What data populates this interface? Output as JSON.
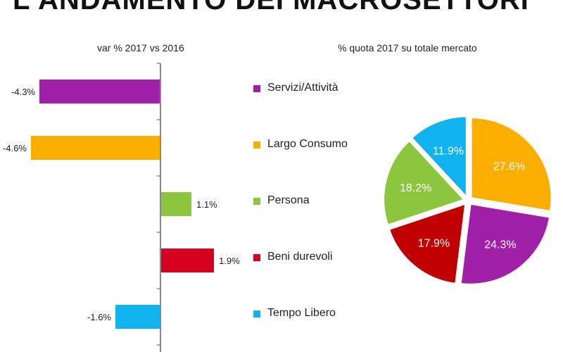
{
  "title": "L'ANDAMENTO DEI MACROSETTORI",
  "chart_data": [
    {
      "type": "bar",
      "orientation": "horizontal",
      "title": "var % 2017 vs 2016",
      "categories": [
        "Servizi/Attività",
        "Largo Consumo",
        "Persona",
        "Beni durevoli",
        "Tempo Libero"
      ],
      "values": [
        -4.3,
        -4.6,
        1.1,
        1.9,
        -1.6
      ],
      "labels": [
        "-4.3%",
        "-4.6%",
        "1.1%",
        "1.9%",
        "-1.6%"
      ],
      "colors": [
        "#A020A8",
        "#F9AE00",
        "#8CC63F",
        "#D7001F",
        "#10B3EE"
      ]
    },
    {
      "type": "pie",
      "title": "% quota 2017 su totale mercato",
      "categories": [
        "Largo Consumo",
        "Servizi/Attività",
        "Beni durevoli",
        "Persona",
        "Tempo Libero"
      ],
      "values": [
        27.6,
        24.3,
        17.9,
        18.2,
        11.9
      ],
      "labels": [
        "27.6%",
        "24.3%",
        "17.9%",
        "18.2%",
        "11.9%"
      ],
      "colors": [
        "#F9AE00",
        "#A020A8",
        "#C00000",
        "#8CC63F",
        "#10B3EE"
      ]
    }
  ],
  "legend": [
    {
      "label": "Servizi/Attività",
      "color": "#A020A8"
    },
    {
      "label": "Largo Consumo",
      "color": "#F9AE00"
    },
    {
      "label": "Persona",
      "color": "#8CC63F"
    },
    {
      "label": "Beni durevoli",
      "color": "#D7001F"
    },
    {
      "label": "Tempo Libero",
      "color": "#10B3EE"
    }
  ]
}
